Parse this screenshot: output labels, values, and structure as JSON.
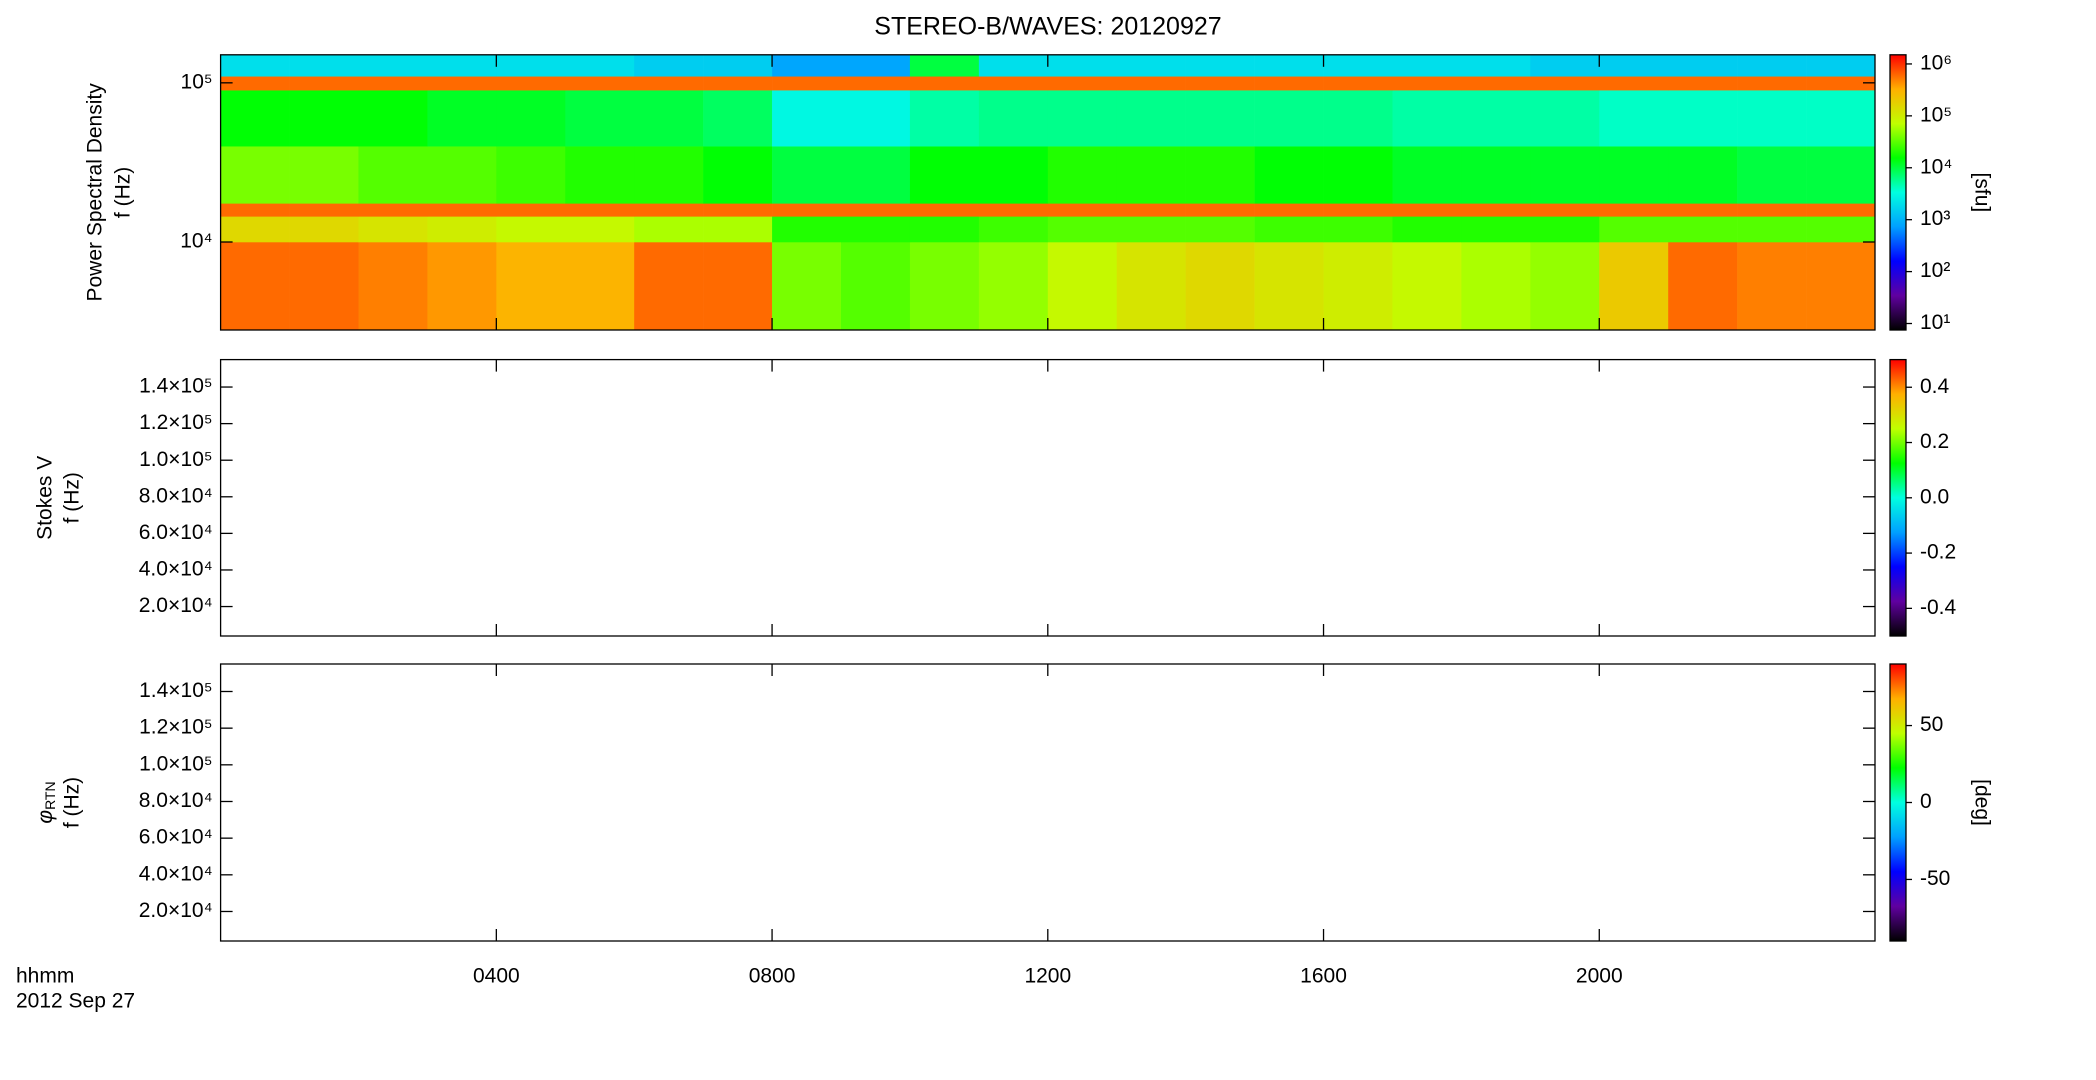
{
  "title": "STEREO-B/WAVES: 20120927",
  "x_header": "hhmm",
  "date": "2012 Sep 27",
  "chart_data": [
    {
      "type": "heatmap",
      "ylabel": "Power Spectral Density",
      "ylabel2": "f (Hz)",
      "ylog": true,
      "ylim": [
        2800,
        150000
      ],
      "yticks": [
        {
          "value": 10000,
          "label": "10⁴"
        },
        {
          "value": 100000,
          "label": "10⁵"
        }
      ],
      "xlim": [
        0,
        24
      ],
      "xticks": [
        {
          "value": 4,
          "label": "0400"
        },
        {
          "value": 8,
          "label": "0800"
        },
        {
          "value": 12,
          "label": "1200"
        },
        {
          "value": 16,
          "label": "1600"
        },
        {
          "value": 20,
          "label": "2000"
        }
      ],
      "xbins": [
        0,
        1,
        2,
        3,
        4,
        5,
        6,
        7,
        8,
        9,
        10,
        11,
        12,
        13,
        14,
        15,
        16,
        17,
        18,
        19,
        20,
        21,
        22,
        23,
        24
      ],
      "ybins": [
        2800,
        10000,
        14500,
        17500,
        40000,
        90000,
        110000,
        150000
      ],
      "z": [
        [
          600000,
          600000,
          500000,
          400000,
          300000,
          300000,
          600000,
          600000,
          40000,
          30000,
          40000,
          50000,
          80000,
          120000,
          150000,
          120000,
          100000,
          80000,
          60000,
          50000,
          200000,
          600000,
          500000,
          500000
        ],
        [
          150000,
          150000,
          120000,
          100000,
          80000,
          80000,
          60000,
          60000,
          20000,
          20000,
          20000,
          25000,
          30000,
          30000,
          30000,
          25000,
          25000,
          20000,
          20000,
          20000,
          30000,
          30000,
          30000,
          30000
        ],
        [
          600000,
          600000,
          600000,
          600000,
          600000,
          600000,
          600000,
          600000,
          600000,
          600000,
          600000,
          600000,
          600000,
          600000,
          600000,
          600000,
          600000,
          600000,
          600000,
          600000,
          600000,
          600000,
          600000,
          600000
        ],
        [
          40000,
          40000,
          30000,
          30000,
          25000,
          20000,
          20000,
          15000,
          10000,
          10000,
          15000,
          15000,
          20000,
          20000,
          20000,
          15000,
          15000,
          12000,
          12000,
          12000,
          12000,
          12000,
          10000,
          10000
        ],
        [
          15000,
          15000,
          15000,
          12000,
          12000,
          10000,
          10000,
          8000,
          3000,
          3000,
          5000,
          6000,
          6000,
          6000,
          6000,
          6000,
          6000,
          5000,
          5000,
          5000,
          4000,
          4000,
          4000,
          4000
        ],
        [
          600000,
          600000,
          600000,
          600000,
          600000,
          600000,
          600000,
          600000,
          600000,
          600000,
          600000,
          600000,
          600000,
          600000,
          600000,
          600000,
          600000,
          600000,
          600000,
          600000,
          600000,
          600000,
          600000,
          600000
        ],
        [
          2000,
          2000,
          2000,
          2000,
          2000,
          2000,
          1500,
          1500,
          800,
          800,
          10000,
          2000,
          2000,
          2000,
          2000,
          2000,
          2000,
          2000,
          2000,
          1500,
          1500,
          1500,
          1500,
          1500
        ]
      ],
      "clog": true,
      "clim": [
        7.5,
        1500000
      ],
      "cticks": [
        {
          "value": 10,
          "label": "10¹"
        },
        {
          "value": 100,
          "label": "10²"
        },
        {
          "value": 1000,
          "label": "10³"
        },
        {
          "value": 10000,
          "label": "10⁴"
        },
        {
          "value": 100000,
          "label": "10⁵"
        },
        {
          "value": 1000000,
          "label": "10⁶"
        }
      ],
      "clabel": "[sfu]",
      "colormap": [
        "#000000",
        "#6000a0",
        "#0000ff",
        "#00a0ff",
        "#00ffe0",
        "#00ff00",
        "#c0ff00",
        "#ffb000",
        "#ff0000"
      ]
    },
    {
      "type": "heatmap",
      "ylabel": "Stokes V",
      "ylabel2": "f (Hz)",
      "ylog": false,
      "ylim": [
        3900,
        155000
      ],
      "yticks": [
        {
          "value": 20000,
          "label": "2.0×10⁴"
        },
        {
          "value": 40000,
          "label": "4.0×10⁴"
        },
        {
          "value": 60000,
          "label": "6.0×10⁴"
        },
        {
          "value": 80000,
          "label": "8.0×10⁴"
        },
        {
          "value": 100000,
          "label": "1.0×10⁵"
        },
        {
          "value": 120000,
          "label": "1.2×10⁵"
        },
        {
          "value": 140000,
          "label": "1.4×10⁵"
        }
      ],
      "xlim": [
        0,
        24
      ],
      "xticks": [
        {
          "value": 4,
          "label": "0400"
        },
        {
          "value": 8,
          "label": "0800"
        },
        {
          "value": 12,
          "label": "1200"
        },
        {
          "value": 16,
          "label": "1600"
        },
        {
          "value": 20,
          "label": "2000"
        }
      ],
      "clog": false,
      "clim": [
        -0.5,
        0.5
      ],
      "cticks": [
        -0.4,
        -0.2,
        {
          "value": 0,
          "label": "0.0"
        },
        0.2,
        0.4
      ],
      "colormap": [
        "#000000",
        "#6000a0",
        "#0000ff",
        "#00a0ff",
        "#00ffe0",
        "#00ff00",
        "#c0ff00",
        "#ffb000",
        "#ff0000"
      ]
    },
    {
      "type": "heatmap",
      "ylabel_symbol": "φ",
      "ylabel_subscript": "RTN",
      "ylabel2": "f (Hz)",
      "ylog": false,
      "ylim": [
        3900,
        155000
      ],
      "yticks": [
        {
          "value": 20000,
          "label": "2.0×10⁴"
        },
        {
          "value": 40000,
          "label": "4.0×10⁴"
        },
        {
          "value": 60000,
          "label": "6.0×10⁴"
        },
        {
          "value": 80000,
          "label": "8.0×10⁴"
        },
        {
          "value": 100000,
          "label": "1.0×10⁵"
        },
        {
          "value": 120000,
          "label": "1.2×10⁵"
        },
        {
          "value": 140000,
          "label": "1.4×10⁵"
        }
      ],
      "xlim": [
        0,
        24
      ],
      "xticks": [
        {
          "value": 4,
          "label": "0400"
        },
        {
          "value": 8,
          "label": "0800"
        },
        {
          "value": 12,
          "label": "1200"
        },
        {
          "value": 16,
          "label": "1600"
        },
        {
          "value": 20,
          "label": "2000"
        }
      ],
      "clog": false,
      "clim": [
        -90,
        90
      ],
      "cticks": [
        -50,
        0,
        50
      ],
      "clabel": "[deg]",
      "colormap": [
        "#000000",
        "#6000a0",
        "#0000ff",
        "#00a0ff",
        "#00ffe0",
        "#00ff00",
        "#c0ff00",
        "#ffb000",
        "#ff0000"
      ]
    }
  ]
}
